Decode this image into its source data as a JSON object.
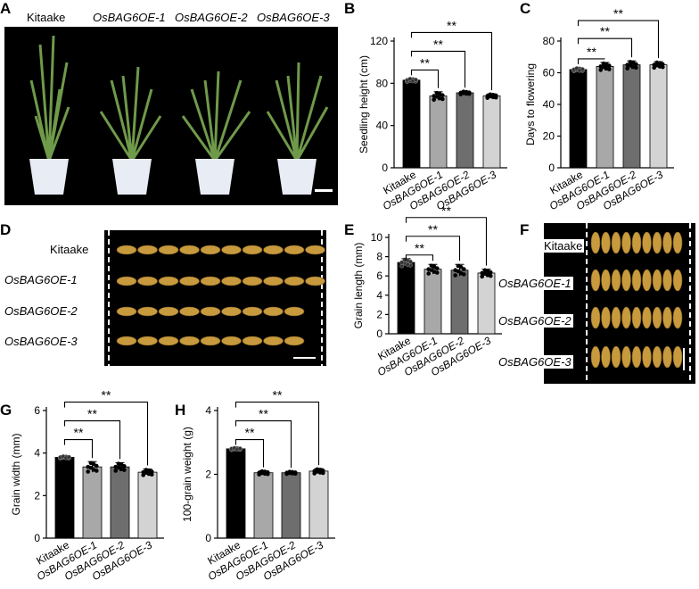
{
  "panels": {
    "A": "A",
    "B": "B",
    "C": "C",
    "D": "D",
    "E": "E",
    "F": "F",
    "G": "G",
    "H": "H"
  },
  "lines": [
    "Kitaake",
    "OsBAG6OE-1",
    "OsBAG6OE-2",
    "OsBAG6OE-3"
  ],
  "colors": {
    "bars": [
      "#000000",
      "#a8a8a8",
      "#6e6e6e",
      "#d3d3d3"
    ],
    "photo_bg": "#000000",
    "grain": "#c89a3e",
    "pot": "#e8ecf5",
    "leaf": "#6f9a4a"
  },
  "significance": "**",
  "chart_data": [
    {
      "id": "B",
      "type": "bar",
      "categories": [
        "Kitaake",
        "OsBAG6OE-1",
        "OsBAG6OE-2",
        "OsBAG6OE-3"
      ],
      "values": [
        83,
        68,
        71,
        68
      ],
      "errors": [
        1.5,
        4,
        1.5,
        2
      ],
      "ylabel": "Seedling height (cm)",
      "ylim": [
        0,
        120
      ],
      "yticks": [
        0,
        40,
        80,
        120
      ],
      "comparisons": [
        {
          "from": 0,
          "to": 1,
          "label": "**"
        },
        {
          "from": 0,
          "to": 2,
          "label": "**"
        },
        {
          "from": 0,
          "to": 3,
          "label": "**"
        }
      ]
    },
    {
      "id": "C",
      "type": "bar",
      "categories": [
        "Kitaake",
        "OsBAG6OE-1",
        "OsBAG6OE-2",
        "OsBAG6OE-3"
      ],
      "values": [
        62,
        64,
        65,
        65
      ],
      "errors": [
        1,
        2.5,
        2.5,
        2
      ],
      "ylabel": "Days to flowering",
      "ylim": [
        0,
        80
      ],
      "yticks": [
        0,
        20,
        40,
        60,
        80
      ],
      "comparisons": [
        {
          "from": 0,
          "to": 1,
          "label": "**"
        },
        {
          "from": 0,
          "to": 2,
          "label": "**"
        },
        {
          "from": 0,
          "to": 3,
          "label": "**"
        }
      ]
    },
    {
      "id": "E",
      "type": "bar",
      "categories": [
        "Kitaake",
        "OsBAG6OE-1",
        "OsBAG6OE-2",
        "OsBAG6OE-3"
      ],
      "values": [
        7.4,
        6.7,
        6.6,
        6.3
      ],
      "errors": [
        0.4,
        0.5,
        0.6,
        0.4
      ],
      "ylabel": "Grain length (mm)",
      "ylim": [
        0,
        10
      ],
      "yticks": [
        0,
        2,
        4,
        6,
        8,
        10
      ],
      "comparisons": [
        {
          "from": 0,
          "to": 1,
          "label": "**"
        },
        {
          "from": 0,
          "to": 2,
          "label": "**"
        },
        {
          "from": 0,
          "to": 3,
          "label": "**"
        }
      ]
    },
    {
      "id": "G",
      "type": "bar",
      "categories": [
        "Kitaake",
        "OsBAG6OE-1",
        "OsBAG6OE-2",
        "OsBAG6OE-3"
      ],
      "values": [
        3.8,
        3.35,
        3.35,
        3.1
      ],
      "errors": [
        0.05,
        0.25,
        0.2,
        0.15
      ],
      "ylabel": "Grain width (mm)",
      "ylim": [
        0,
        6
      ],
      "yticks": [
        0,
        2,
        4,
        6
      ],
      "comparisons": [
        {
          "from": 0,
          "to": 1,
          "label": "**"
        },
        {
          "from": 0,
          "to": 2,
          "label": "**"
        },
        {
          "from": 0,
          "to": 3,
          "label": "**"
        }
      ]
    },
    {
      "id": "H",
      "type": "bar",
      "categories": [
        "Kitaake",
        "OsBAG6OE-1",
        "OsBAG6OE-2",
        "OsBAG6OE-3"
      ],
      "values": [
        2.8,
        2.05,
        2.05,
        2.1
      ],
      "errors": [
        0.03,
        0.06,
        0.04,
        0.08
      ],
      "ylabel": "100-grain weight (g)",
      "ylim": [
        0,
        4
      ],
      "yticks": [
        0,
        2,
        4
      ],
      "comparisons": [
        {
          "from": 0,
          "to": 1,
          "label": "**"
        },
        {
          "from": 0,
          "to": 2,
          "label": "**"
        },
        {
          "from": 0,
          "to": 3,
          "label": "**"
        }
      ]
    }
  ]
}
